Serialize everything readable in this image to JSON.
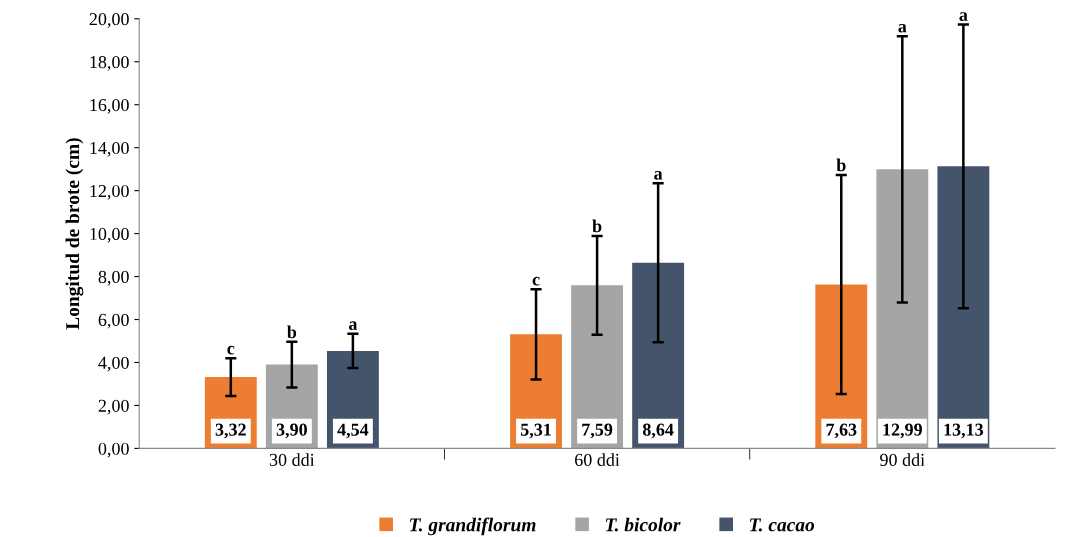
{
  "chart_data": {
    "type": "bar",
    "ylabel": "Longitud de brote (cm)",
    "categories": [
      "30 ddi",
      "60 ddi",
      "90 ddi"
    ],
    "series": [
      {
        "name": "T. grandiflorum",
        "color": "#ed7d31",
        "values": [
          3.32,
          5.31,
          7.63
        ],
        "errors": [
          0.88,
          2.1,
          5.1
        ],
        "value_labels": [
          "3,32",
          "5,31",
          "7,63"
        ]
      },
      {
        "name": "T. bicolor",
        "color": "#a5a5a5",
        "values": [
          3.9,
          7.59,
          12.99
        ],
        "errors": [
          1.06,
          2.3,
          6.2
        ],
        "value_labels": [
          "3,90",
          "7,59",
          "12,99"
        ]
      },
      {
        "name": "T. cacao",
        "color": "#44546a",
        "values": [
          4.54,
          8.64,
          13.13
        ],
        "errors": [
          0.8,
          3.7,
          6.6
        ],
        "value_labels": [
          "4,54",
          "8,64",
          "13,13"
        ]
      }
    ],
    "ylim": [
      0,
      20
    ],
    "yticks": [
      {
        "value": 0,
        "label": "0,00"
      },
      {
        "value": 2,
        "label": "2,00"
      },
      {
        "value": 4,
        "label": "4,00"
      },
      {
        "value": 6,
        "label": "6,00"
      },
      {
        "value": 8,
        "label": "8,00"
      },
      {
        "value": 10,
        "label": "10,00"
      },
      {
        "value": 12,
        "label": "12,00"
      },
      {
        "value": 14,
        "label": "14,00"
      },
      {
        "value": 16,
        "label": "16,00"
      },
      {
        "value": 18,
        "label": "18,00"
      },
      {
        "value": 20,
        "label": "20,00"
      }
    ],
    "annotations": [
      "c",
      "c",
      "b",
      "b",
      "b",
      "a",
      "a",
      "a",
      "a"
    ],
    "grid": false,
    "legend": "bottom"
  }
}
